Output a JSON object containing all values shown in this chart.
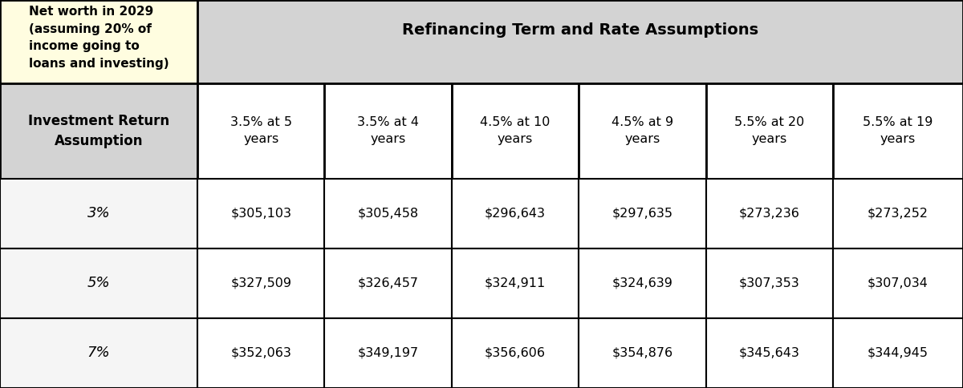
{
  "top_left_text": "Net worth in 2029\n(assuming 20% of\nincome going to\nloans and investing)",
  "top_right_header": "Refinancing Term and Rate Assumptions",
  "col_header_label": "Investment Return\nAssumption",
  "col_headers": [
    "3.5% at 5\nyears",
    "3.5% at 4\nyears",
    "4.5% at 10\nyears",
    "4.5% at 9\nyears",
    "5.5% at 20\nyears",
    "5.5% at 19\nyears"
  ],
  "row_labels": [
    "3%",
    "5%",
    "7%"
  ],
  "data": [
    [
      "$305,103",
      "$305,458",
      "$296,643",
      "$297,635",
      "$273,236",
      "$273,252"
    ],
    [
      "$327,509",
      "$326,457",
      "$324,911",
      "$324,639",
      "$307,353",
      "$307,034"
    ],
    [
      "$352,063",
      "$349,197",
      "$356,606",
      "$354,876",
      "$345,643",
      "$344,945"
    ]
  ],
  "top_left_bg": "#fffde0",
  "top_right_bg": "#d3d3d3",
  "col_header_bg": "#d3d3d3",
  "col_header_data_bg": "#ffffff",
  "data_row_label_bg": "#f5f5f5",
  "data_row_bg": "#ffffff",
  "border_color": "#000000",
  "text_color": "#000000",
  "figsize": [
    12.0,
    4.84
  ],
  "dpi": 100
}
